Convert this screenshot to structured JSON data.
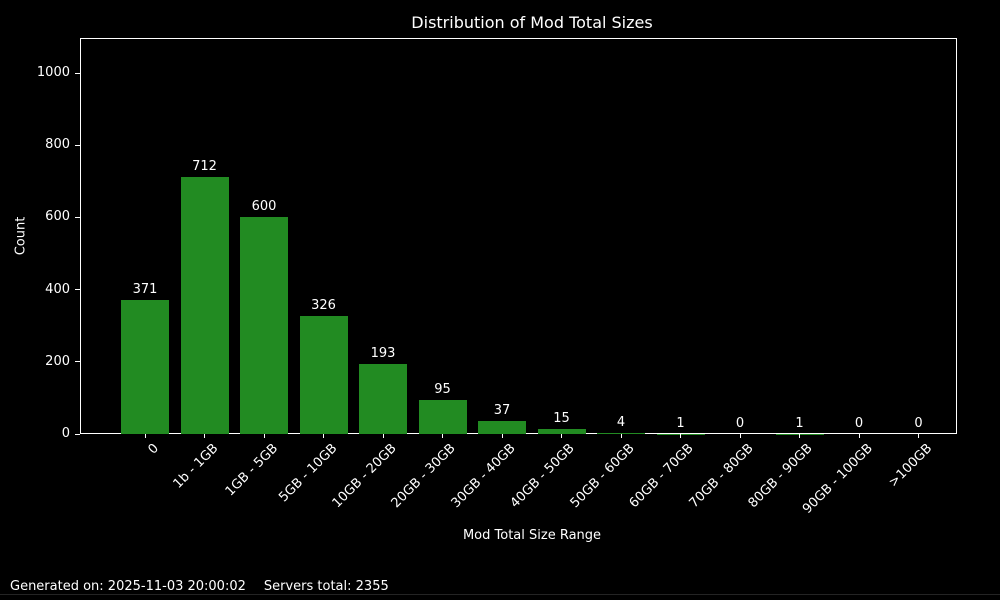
{
  "title": "Distribution of Mod Total Sizes",
  "footer": {
    "generated": "Generated on: 2025-11-03 20:00:02",
    "servers": "Servers total: 2355"
  },
  "colors": {
    "background": "#000000",
    "bar": "#228B22",
    "text": "#ffffff",
    "axis": "#ffffff"
  },
  "chart_data": {
    "type": "bar",
    "title": "Distribution of Mod Total Sizes",
    "xlabel": "Mod Total Size Range",
    "ylabel": "Count",
    "categories": [
      "0",
      "1b - 1GB",
      "1GB - 5GB",
      "5GB - 10GB",
      "10GB - 20GB",
      "20GB - 30GB",
      "30GB - 40GB",
      "40GB - 50GB",
      "50GB - 60GB",
      "60GB - 70GB",
      "70GB - 80GB",
      "80GB - 90GB",
      "90GB - 100GB",
      ">100GB"
    ],
    "values": [
      371,
      712,
      600,
      326,
      193,
      95,
      37,
      15,
      4,
      1,
      0,
      1,
      0,
      0
    ],
    "value_labels": [
      371,
      712,
      600,
      326,
      193,
      95,
      37,
      15,
      4,
      1,
      0,
      1,
      0,
      0
    ],
    "yticks": [
      0,
      200,
      400,
      600,
      800,
      1000
    ],
    "ylim": [
      0,
      1097
    ],
    "grid": false,
    "legend": null,
    "bar_color": "#228B22",
    "background_color": "#000000",
    "xtick_rotation": 45
  }
}
